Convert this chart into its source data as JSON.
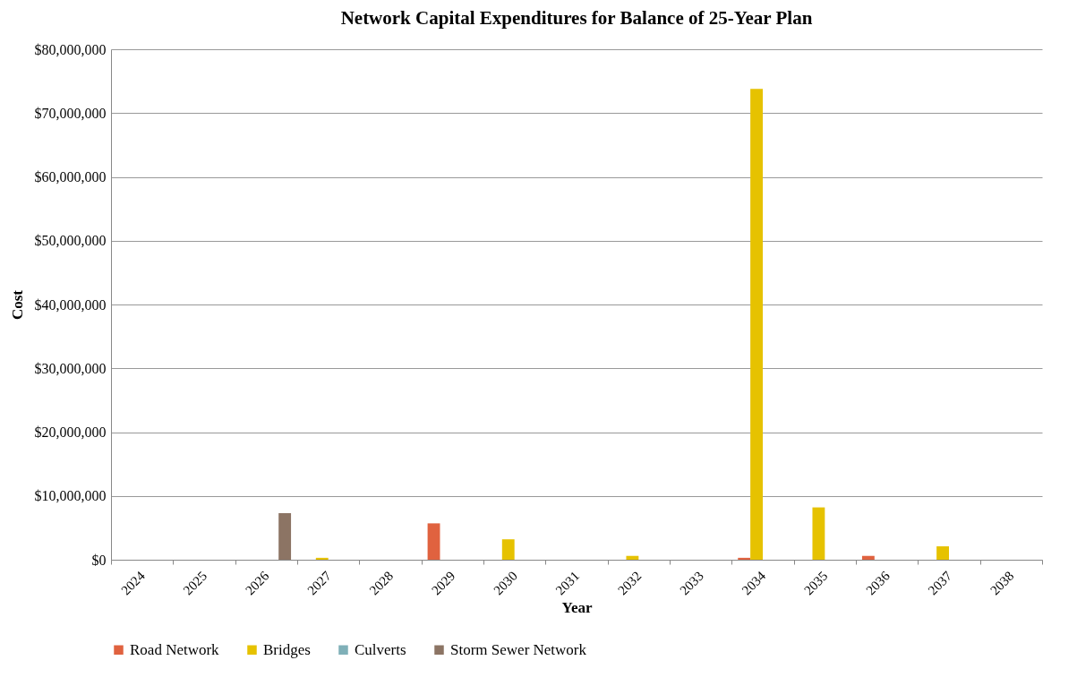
{
  "chart_data": {
    "type": "bar",
    "title": "Network Capital Expenditures for Balance of 25-Year Plan",
    "xlabel": "Year",
    "ylabel": "Cost",
    "categories": [
      "2024",
      "2025",
      "2026",
      "2027",
      "2028",
      "2029",
      "2030",
      "2031",
      "2032",
      "2033",
      "2034",
      "2035",
      "2036",
      "2037",
      "2038"
    ],
    "series": [
      {
        "name": "Road Network",
        "color": "#e0623f",
        "values": [
          0,
          0,
          0,
          0,
          0,
          5700000,
          0,
          0,
          0,
          0,
          300000,
          0,
          600000,
          0,
          0
        ]
      },
      {
        "name": "Bridges",
        "color": "#e6c200",
        "values": [
          0,
          0,
          0,
          300000,
          0,
          0,
          3200000,
          0,
          600000,
          0,
          73800000,
          8200000,
          0,
          2100000,
          0
        ]
      },
      {
        "name": "Culverts",
        "color": "#7fb0b8",
        "values": [
          0,
          0,
          0,
          0,
          0,
          0,
          null,
          0,
          0,
          0,
          0,
          0,
          0,
          0,
          0
        ]
      },
      {
        "name": "Storm Sewer Network",
        "color": "#8c7464",
        "values": [
          0,
          0,
          7300000,
          0,
          0,
          0,
          0,
          0,
          0,
          0,
          0,
          0,
          0,
          0,
          0
        ]
      }
    ],
    "ylim": [
      0,
      80000000
    ],
    "yticks": [
      {
        "value": 0,
        "label": "$0"
      },
      {
        "value": 10000000,
        "label": "$10,000,000"
      },
      {
        "value": 20000000,
        "label": "$20,000,000"
      },
      {
        "value": 30000000,
        "label": "$30,000,000"
      },
      {
        "value": 40000000,
        "label": "$40,000,000"
      },
      {
        "value": 50000000,
        "label": "$50,000,000"
      },
      {
        "value": 60000000,
        "label": "$60,000,000"
      },
      {
        "value": 70000000,
        "label": "$70,000,000"
      },
      {
        "value": 80000000,
        "label": "$80,000,000"
      }
    ],
    "grid": "y",
    "legend": "bottom"
  }
}
